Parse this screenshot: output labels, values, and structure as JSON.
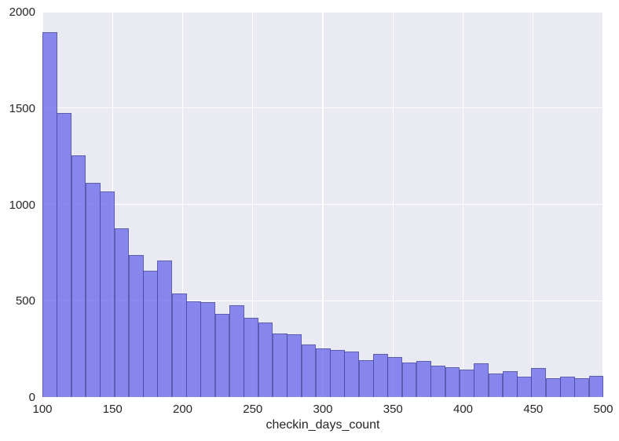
{
  "chart_data": {
    "type": "bar",
    "subtype": "histogram",
    "title": "",
    "xlabel": "checkin_days_count",
    "ylabel": "",
    "xlim": [
      100,
      500
    ],
    "ylim": [
      0,
      2000
    ],
    "x_ticks": [
      100,
      150,
      200,
      250,
      300,
      350,
      400,
      450,
      500
    ],
    "y_ticks": [
      0,
      500,
      1000,
      1500,
      2000
    ],
    "grid": true,
    "legend": false,
    "bins": 39,
    "bin_range": [
      100,
      500
    ],
    "bin_width": 10.26,
    "values": [
      1893,
      1473,
      1254,
      1111,
      1066,
      875,
      739,
      657,
      708,
      536,
      496,
      492,
      431,
      478,
      412,
      385,
      328,
      327,
      273,
      252,
      243,
      236,
      192,
      226,
      208,
      179,
      187,
      165,
      153,
      141,
      174,
      124,
      136,
      105,
      150,
      99,
      108,
      99,
      112
    ],
    "colors": {
      "bar_fill": "rgba(100,100,235,0.75)",
      "bar_edge": "rgba(60,60,130,0.55)",
      "plot_background": "#eaeaf2",
      "gridline": "#ffffff",
      "tick_text": "#262626",
      "figure_background": "#ffffff"
    }
  }
}
